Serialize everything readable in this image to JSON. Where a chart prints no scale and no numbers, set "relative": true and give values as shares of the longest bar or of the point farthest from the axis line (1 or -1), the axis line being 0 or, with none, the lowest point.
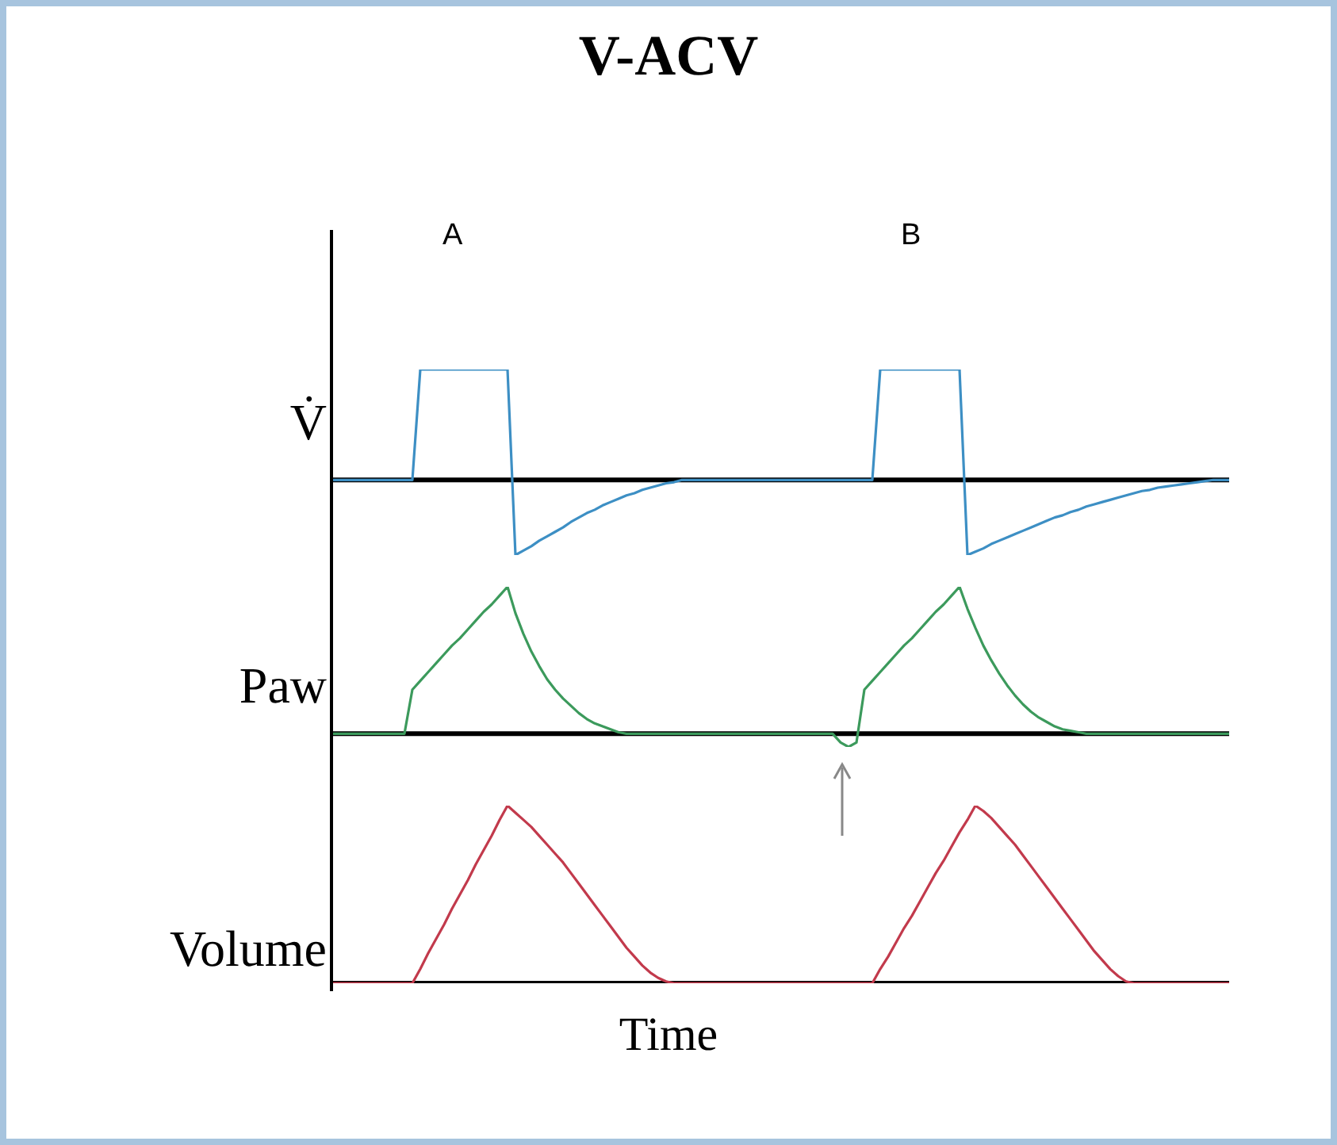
{
  "chart_data": [
    {
      "type": "line",
      "title": "V-ACV",
      "annotations": [
        "A",
        "B"
      ],
      "ylabel": "V̇",
      "relative": true,
      "color": "#3d8fc4",
      "categories": [
        null,
        null,
        null,
        null,
        null,
        null,
        null,
        null,
        null,
        null,
        null,
        null,
        null,
        null,
        null,
        null,
        null,
        null,
        null,
        null,
        null,
        null,
        null,
        null,
        null,
        null,
        null,
        null,
        null,
        null,
        null,
        null,
        null,
        null,
        null,
        null,
        null,
        null,
        null,
        null,
        null,
        null,
        null,
        null,
        null,
        null,
        null,
        null,
        null,
        null,
        null,
        null,
        null,
        null,
        null,
        null,
        null,
        null,
        null,
        null,
        null,
        null,
        null,
        null,
        null,
        null,
        null,
        null,
        null,
        null,
        null,
        null,
        null,
        null,
        null,
        null,
        null,
        null,
        null,
        null,
        null,
        null,
        null,
        null,
        null,
        null,
        null,
        null,
        null,
        null,
        null,
        null,
        null,
        null,
        null,
        null,
        null,
        null,
        null,
        null,
        null,
        null,
        null,
        null,
        null,
        null,
        null,
        null,
        null,
        null,
        null,
        null,
        null,
        null
      ],
      "values": [
        0,
        0,
        0,
        0,
        0,
        0,
        0,
        0,
        0,
        0,
        0,
        1,
        1,
        1,
        1,
        1,
        1,
        1,
        1,
        1,
        1,
        1,
        1,
        -0.68,
        -0.64,
        -0.6,
        -0.55,
        -0.51,
        -0.47,
        -0.43,
        -0.38,
        -0.34,
        -0.3,
        -0.27,
        -0.23,
        -0.2,
        -0.17,
        -0.14,
        -0.12,
        -0.09,
        -0.07,
        -0.05,
        -0.03,
        -0.02,
        0,
        0,
        0,
        0,
        0,
        0,
        0,
        0,
        0,
        0,
        0,
        0,
        0,
        0,
        0,
        0,
        0,
        0,
        0,
        0,
        0,
        0,
        0,
        0,
        0,
        1,
        1,
        1,
        1,
        1,
        1,
        1,
        1,
        1,
        1,
        1,
        -0.68,
        -0.65,
        -0.62,
        -0.58,
        -0.55,
        -0.52,
        -0.49,
        -0.46,
        -0.43,
        -0.4,
        -0.37,
        -0.34,
        -0.32,
        -0.29,
        -0.27,
        -0.24,
        -0.22,
        -0.2,
        -0.18,
        -0.16,
        -0.14,
        -0.12,
        -0.1,
        -0.09,
        -0.07,
        -0.06,
        -0.05,
        -0.04,
        -0.03,
        -0.02,
        -0.01,
        0,
        0,
        0
      ]
    },
    {
      "type": "line",
      "ylabel": "Paw",
      "relative": true,
      "color": "#3c9a5c",
      "categories": [
        null,
        null,
        null,
        null,
        null,
        null,
        null,
        null,
        null,
        null,
        null,
        null,
        null,
        null,
        null,
        null,
        null,
        null,
        null,
        null,
        null,
        null,
        null,
        null,
        null,
        null,
        null,
        null,
        null,
        null,
        null,
        null,
        null,
        null,
        null,
        null,
        null,
        null,
        null,
        null,
        null,
        null,
        null,
        null,
        null,
        null,
        null,
        null,
        null,
        null,
        null,
        null,
        null,
        null,
        null,
        null,
        null,
        null,
        null,
        null,
        null,
        null,
        null,
        null,
        null,
        null,
        null,
        null,
        null,
        null,
        null,
        null,
        null,
        null,
        null,
        null,
        null,
        null,
        null,
        null,
        null,
        null,
        null,
        null,
        null,
        null,
        null,
        null,
        null,
        null,
        null,
        null,
        null,
        null,
        null,
        null,
        null,
        null,
        null,
        null,
        null,
        null,
        null,
        null,
        null,
        null,
        null,
        null,
        null,
        null,
        null,
        null,
        null,
        null
      ],
      "values": [
        0,
        0,
        0,
        0,
        0,
        0,
        0,
        0,
        0,
        0,
        0.3,
        0.36,
        0.42,
        0.48,
        0.54,
        0.6,
        0.65,
        0.71,
        0.77,
        0.83,
        0.88,
        0.94,
        1,
        0.82,
        0.68,
        0.56,
        0.46,
        0.37,
        0.3,
        0.24,
        0.19,
        0.14,
        0.1,
        0.07,
        0.05,
        0.03,
        0.01,
        0,
        0,
        0,
        0,
        0,
        0,
        0,
        0,
        0,
        0,
        0,
        0,
        0,
        0,
        0,
        0,
        0,
        0,
        0,
        0,
        0,
        0,
        0,
        0,
        0,
        0,
        0,
        -0.06,
        -0.09,
        -0.06,
        0.3,
        0.36,
        0.42,
        0.48,
        0.54,
        0.6,
        0.65,
        0.71,
        0.77,
        0.83,
        0.88,
        0.94,
        1,
        0.85,
        0.72,
        0.6,
        0.5,
        0.41,
        0.33,
        0.26,
        0.2,
        0.15,
        0.11,
        0.08,
        0.05,
        0.03,
        0.02,
        0.01,
        0,
        0,
        0,
        0,
        0,
        0,
        0,
        0,
        0,
        0,
        0,
        0,
        0,
        0,
        0,
        0,
        0,
        0,
        0
      ]
    },
    {
      "type": "line",
      "ylabel": "Volume",
      "xlabel": "Time",
      "relative": true,
      "color": "#c23a4c",
      "categories": [
        null,
        null,
        null,
        null,
        null,
        null,
        null,
        null,
        null,
        null,
        null,
        null,
        null,
        null,
        null,
        null,
        null,
        null,
        null,
        null,
        null,
        null,
        null,
        null,
        null,
        null,
        null,
        null,
        null,
        null,
        null,
        null,
        null,
        null,
        null,
        null,
        null,
        null,
        null,
        null,
        null,
        null,
        null,
        null,
        null,
        null,
        null,
        null,
        null,
        null,
        null,
        null,
        null,
        null,
        null,
        null,
        null,
        null,
        null,
        null,
        null,
        null,
        null,
        null,
        null,
        null,
        null,
        null,
        null,
        null,
        null,
        null,
        null,
        null,
        null,
        null,
        null,
        null,
        null,
        null,
        null,
        null,
        null,
        null,
        null,
        null,
        null,
        null,
        null,
        null,
        null,
        null,
        null,
        null,
        null,
        null,
        null,
        null,
        null,
        null,
        null,
        null,
        null,
        null,
        null,
        null,
        null,
        null,
        null,
        null,
        null,
        null,
        null,
        null
      ],
      "values": [
        0,
        0,
        0,
        0,
        0,
        0,
        0,
        0,
        0,
        0,
        0,
        0.08,
        0.17,
        0.25,
        0.33,
        0.42,
        0.5,
        0.58,
        0.67,
        0.75,
        0.83,
        0.92,
        1,
        0.96,
        0.92,
        0.88,
        0.83,
        0.78,
        0.73,
        0.68,
        0.62,
        0.56,
        0.5,
        0.44,
        0.38,
        0.32,
        0.26,
        0.2,
        0.15,
        0.1,
        0.06,
        0.03,
        0.01,
        0,
        0,
        0,
        0,
        0,
        0,
        0,
        0,
        0,
        0,
        0,
        0,
        0,
        0,
        0,
        0,
        0,
        0,
        0,
        0,
        0,
        0,
        0,
        0,
        0,
        0,
        0.08,
        0.15,
        0.23,
        0.31,
        0.38,
        0.46,
        0.54,
        0.62,
        0.69,
        0.77,
        0.85,
        0.92,
        1,
        0.97,
        0.93,
        0.88,
        0.83,
        0.78,
        0.72,
        0.66,
        0.6,
        0.54,
        0.48,
        0.42,
        0.36,
        0.3,
        0.24,
        0.18,
        0.13,
        0.08,
        0.04,
        0.01,
        0,
        0,
        0,
        0,
        0,
        0,
        0,
        0,
        0,
        0,
        0,
        0,
        0
      ]
    }
  ]
}
